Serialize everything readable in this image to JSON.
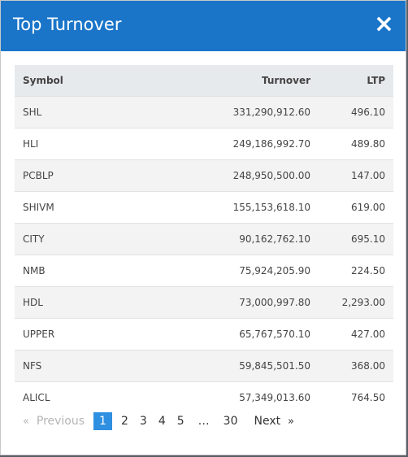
{
  "modal": {
    "title": "Top Turnover",
    "close_label": "×"
  },
  "table": {
    "headers": {
      "symbol": "Symbol",
      "turnover": "Turnover",
      "ltp": "LTP"
    },
    "rows": [
      {
        "symbol": "SHL",
        "turnover": "331,290,912.60",
        "ltp": "496.10"
      },
      {
        "symbol": "HLI",
        "turnover": "249,186,992.70",
        "ltp": "489.80"
      },
      {
        "symbol": "PCBLP",
        "turnover": "248,950,500.00",
        "ltp": "147.00"
      },
      {
        "symbol": "SHIVM",
        "turnover": "155,153,618.10",
        "ltp": "619.00"
      },
      {
        "symbol": "CITY",
        "turnover": "90,162,762.10",
        "ltp": "695.10"
      },
      {
        "symbol": "NMB",
        "turnover": "75,924,205.90",
        "ltp": "224.50"
      },
      {
        "symbol": "HDL",
        "turnover": "73,000,997.80",
        "ltp": "2,293.00"
      },
      {
        "symbol": "UPPER",
        "turnover": "65,767,570.10",
        "ltp": "427.00"
      },
      {
        "symbol": "NFS",
        "turnover": "59,845,501.50",
        "ltp": "368.00"
      },
      {
        "symbol": "ALICL",
        "turnover": "57,349,013.60",
        "ltp": "764.50"
      }
    ]
  },
  "pagination": {
    "prev_arrow": "«",
    "previous": "Previous",
    "pages": [
      "1",
      "2",
      "3",
      "4",
      "5"
    ],
    "ellipsis": "…",
    "last": "30",
    "next": "Next",
    "next_arrow": "»"
  }
}
